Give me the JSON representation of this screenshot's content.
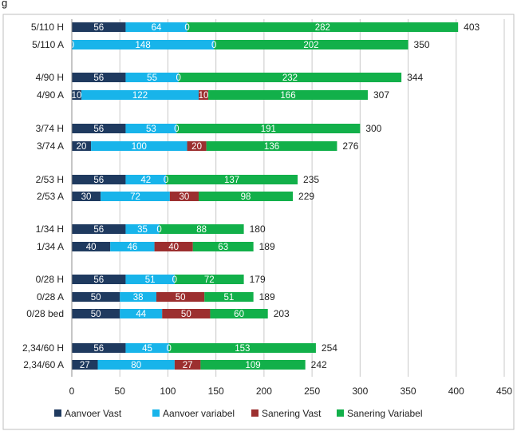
{
  "page": {
    "clipped_top_text": "g"
  },
  "chart_data": {
    "type": "bar",
    "orientation": "horizontal",
    "stacked": true,
    "categories": [
      "5/110 H",
      "5/110 A",
      "4/90 H",
      "4/90 A",
      "3/74 H",
      "3/74 A",
      "2/53 H",
      "2/53 A",
      "1/34 H",
      "1/34 A",
      "0/28 H",
      "0/28 A",
      "0/28 bed",
      "2,34/60 H",
      "2,34/60 A"
    ],
    "series": [
      {
        "name": "Aanvoer Vast",
        "color": "#1f3a5f",
        "values": [
          56,
          0,
          56,
          10,
          56,
          20,
          56,
          30,
          56,
          40,
          56,
          50,
          50,
          56,
          27
        ]
      },
      {
        "name": "Aanvoer variabel",
        "color": "#18b4ea",
        "values": [
          64,
          148,
          55,
          122,
          53,
          100,
          42,
          72,
          35,
          46,
          51,
          38,
          44,
          45,
          80
        ]
      },
      {
        "name": "Sanering Vast",
        "color": "#9c2f2f",
        "values": [
          0,
          0,
          0,
          10,
          0,
          20,
          0,
          30,
          0,
          40,
          0,
          50,
          50,
          0,
          27
        ]
      },
      {
        "name": "Sanering Variabel",
        "color": "#12b04a",
        "values": [
          282,
          202,
          232,
          166,
          191,
          136,
          137,
          98,
          88,
          63,
          72,
          51,
          60,
          153,
          109
        ]
      }
    ],
    "totals": [
      403,
      350,
      344,
      307,
      300,
      276,
      235,
      229,
      180,
      189,
      179,
      189,
      203,
      254,
      242
    ],
    "xlim": [
      0,
      450
    ],
    "xticks": [
      "0",
      "50",
      "100",
      "150",
      "200",
      "250",
      "300",
      "350",
      "400",
      "450"
    ],
    "grid": "vertical",
    "legend_position": "bottom"
  }
}
